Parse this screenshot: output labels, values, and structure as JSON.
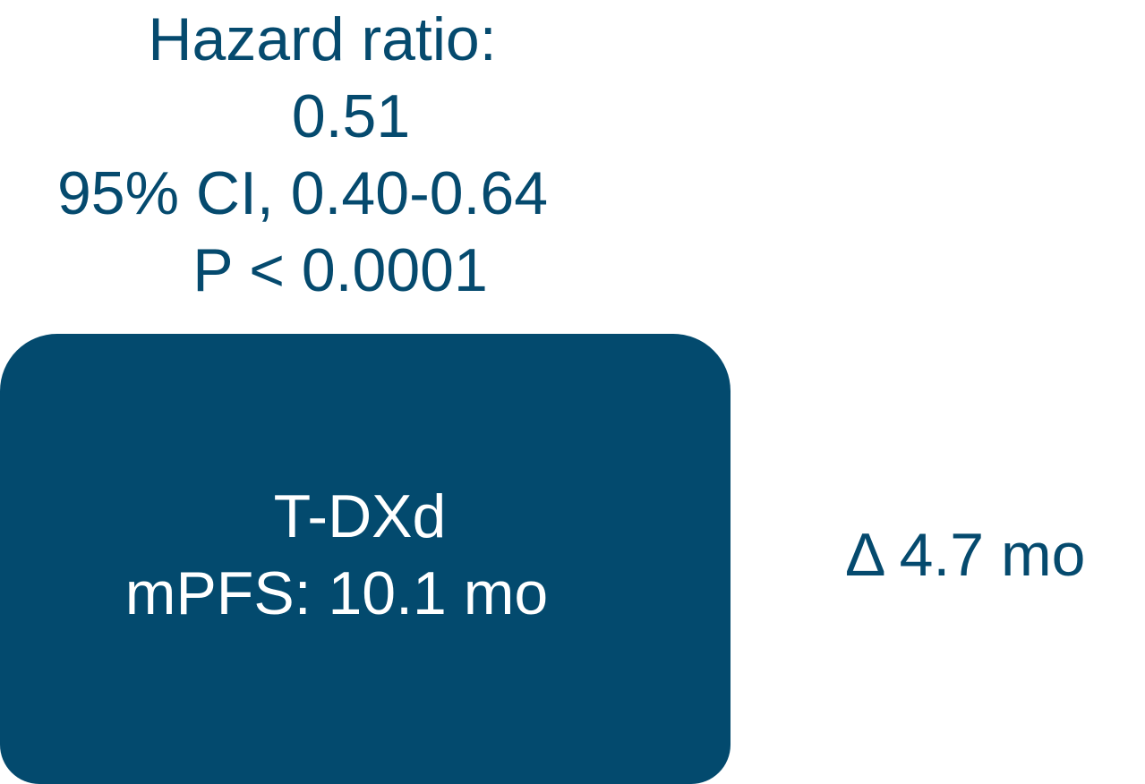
{
  "hazard_stats": {
    "label": "Hazard ratio:",
    "value": "0.51",
    "ci": "95% CI, 0.40-0.64",
    "p_value": "P < 0.0001"
  },
  "treatment_arm": {
    "name": "T-DXd",
    "mpfs": "mPFS: 10.1 mo"
  },
  "difference": {
    "label": "Δ 4.7 mo"
  },
  "colors": {
    "primary": "#034a6e",
    "text_on_primary": "#ffffff",
    "background": "#ffffff"
  }
}
